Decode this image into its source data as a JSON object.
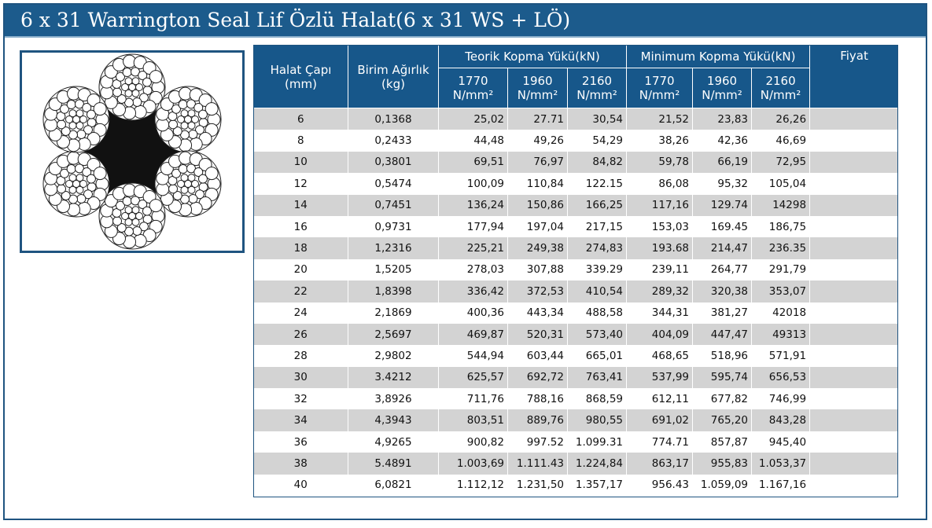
{
  "title": "6 x 31 Warrington Seal Lif Özlü Halat(6 x 31 WS + LÖ)",
  "table": {
    "headers": {
      "diameter": [
        "Halat Çapı",
        "(mm)"
      ],
      "weight": [
        "Birim Ağırlık",
        "(kg)"
      ],
      "theoretical": "Teorik Kopma Yükü(kN)",
      "minimum": "Minimum Kopma Yükü(kN)",
      "price": "Fiyat",
      "grades": [
        "1770",
        "1960",
        "2160",
        "1770",
        "1960",
        "2160"
      ],
      "unit": "N/mm²"
    },
    "rows": [
      [
        "6",
        "0,1368",
        "25,02",
        "27.71",
        "30,54",
        "21,52",
        "23,83",
        "26,26",
        ""
      ],
      [
        "8",
        "0,2433",
        "44,48",
        "49,26",
        "54,29",
        "38,26",
        "42,36",
        "46,69",
        ""
      ],
      [
        "10",
        "0,3801",
        "69,51",
        "76,97",
        "84,82",
        "59,78",
        "66,19",
        "72,95",
        ""
      ],
      [
        "12",
        "0,5474",
        "100,09",
        "110,84",
        "122.15",
        "86,08",
        "95,32",
        "105,04",
        ""
      ],
      [
        "14",
        "0,7451",
        "136,24",
        "150,86",
        "166,25",
        "117,16",
        "129.74",
        "14298",
        ""
      ],
      [
        "16",
        "0,9731",
        "177,94",
        "197,04",
        "217,15",
        "153,03",
        "169.45",
        "186,75",
        ""
      ],
      [
        "18",
        "1,2316",
        "225,21",
        "249,38",
        "274,83",
        "193.68",
        "214,47",
        "236.35",
        ""
      ],
      [
        "20",
        "1,5205",
        "278,03",
        "307,88",
        "339.29",
        "239,11",
        "264,77",
        "291,79",
        ""
      ],
      [
        "22",
        "1,8398",
        "336,42",
        "372,53",
        "410,54",
        "289,32",
        "320,38",
        "353,07",
        ""
      ],
      [
        "24",
        "2,1869",
        "400,36",
        "443,34",
        "488,58",
        "344,31",
        "381,27",
        "42018",
        ""
      ],
      [
        "26",
        "2,5697",
        "469,87",
        "520,31",
        "573,40",
        "404,09",
        "447,47",
        "49313",
        ""
      ],
      [
        "28",
        "2,9802",
        "544,94",
        "603,44",
        "665,01",
        "468,65",
        "518,96",
        "571,91",
        ""
      ],
      [
        "30",
        "3.4212",
        "625,57",
        "692,72",
        "763,41",
        "537,99",
        "595,74",
        "656,53",
        ""
      ],
      [
        "32",
        "3,8926",
        "711,76",
        "788,16",
        "868,59",
        "612,11",
        "677,82",
        "746,99",
        ""
      ],
      [
        "34",
        "4,3943",
        "803,51",
        "889,76",
        "980,55",
        "691,02",
        "765,20",
        "843,28",
        ""
      ],
      [
        "36",
        "4,9265",
        "900,82",
        "997.52",
        "1.099.31",
        "774.71",
        "857,87",
        "945,40",
        ""
      ],
      [
        "38",
        "5.4891",
        "1.003,69",
        "1.111.43",
        "1.224,84",
        "863,17",
        "955,83",
        "1.053,37",
        ""
      ],
      [
        "40",
        "6,0821",
        "1.112,12",
        "1.231,50",
        "1.357,17",
        "956.43",
        "1.059,09",
        "1.167,16",
        ""
      ]
    ]
  },
  "colors": {
    "header_bg": "#17578a",
    "title_bg": "#1c5b8c",
    "row_shade": "#d3d3d3",
    "border": "#1f5480"
  }
}
